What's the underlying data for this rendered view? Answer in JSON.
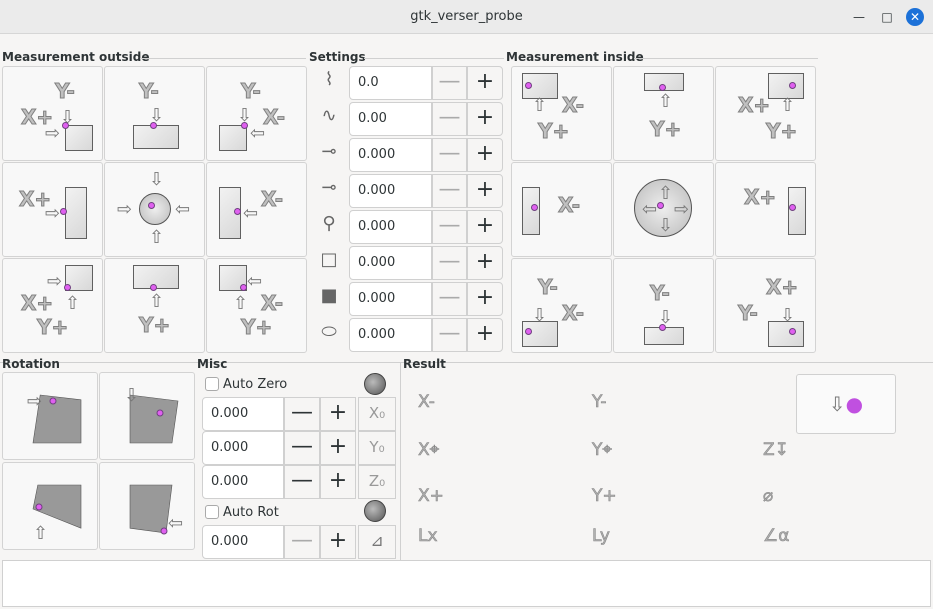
{
  "window": {
    "title": "gtk_verser_probe",
    "minimize": "—",
    "maximize": "□",
    "close": "✕"
  },
  "measurement_outside": {
    "label": "Measurement outside",
    "cells": [
      {
        "labels": [
          "Y-",
          "X+"
        ]
      },
      {
        "labels": [
          "Y-"
        ]
      },
      {
        "labels": [
          "Y-",
          "X-"
        ]
      },
      {
        "labels": [
          "X+"
        ]
      },
      {
        "labels": []
      },
      {
        "labels": [
          "X-"
        ]
      },
      {
        "labels": [
          "X+",
          "Y+"
        ]
      },
      {
        "labels": [
          "Y+"
        ]
      },
      {
        "labels": [
          "X-",
          "Y+"
        ]
      }
    ]
  },
  "settings": {
    "label": "Settings",
    "rows": [
      {
        "icon": "probe-search-velocity-icon",
        "value": "0.0"
      },
      {
        "icon": "probe-velocity-icon",
        "value": "0.00"
      },
      {
        "icon": "max-travel-icon",
        "value": "0.000"
      },
      {
        "icon": "latch-return-icon",
        "value": "0.000"
      },
      {
        "icon": "probe-diameter-icon",
        "value": "0.000"
      },
      {
        "icon": "xy-clearance-icon",
        "value": "0.000"
      },
      {
        "icon": "edge-length-icon",
        "value": "0.000"
      },
      {
        "icon": "z-clearance-icon",
        "value": "0.000"
      }
    ],
    "minus": "—",
    "plus": "+"
  },
  "measurement_inside": {
    "label": "Measurement inside",
    "cells": [
      {
        "labels": [
          "X-",
          "Y+"
        ]
      },
      {
        "labels": [
          "Y+"
        ]
      },
      {
        "labels": [
          "X+",
          "Y+"
        ]
      },
      {
        "labels": [
          "X-"
        ]
      },
      {
        "labels": []
      },
      {
        "labels": [
          "X+"
        ]
      },
      {
        "labels": [
          "Y-",
          "X-"
        ]
      },
      {
        "labels": [
          "Y-"
        ]
      },
      {
        "labels": [
          "X+",
          "Y-"
        ]
      }
    ]
  },
  "rotation": {
    "label": "Rotation"
  },
  "misc": {
    "label": "Misc",
    "auto_zero": "Auto Zero",
    "auto_zero_checked": false,
    "auto_rot": "Auto Rot",
    "auto_rot_checked": false,
    "rows": [
      {
        "value": "0.000",
        "action": "X₀"
      },
      {
        "value": "0.000",
        "action": "Y₀"
      },
      {
        "value": "0.000",
        "action": "Z₀"
      }
    ],
    "rot_row": {
      "value": "0.000",
      "action": "⊿"
    },
    "minus": "—",
    "plus": "+"
  },
  "result": {
    "label": "Result",
    "items": [
      "X-",
      "Y-",
      "X⌖",
      "Y⌖",
      "Z↧",
      "X+",
      "Y+",
      "⌀",
      "Lx",
      "Ly",
      "∠α"
    ],
    "probe_button_icon": "probe-down-icon"
  },
  "status": {
    "text": ""
  }
}
